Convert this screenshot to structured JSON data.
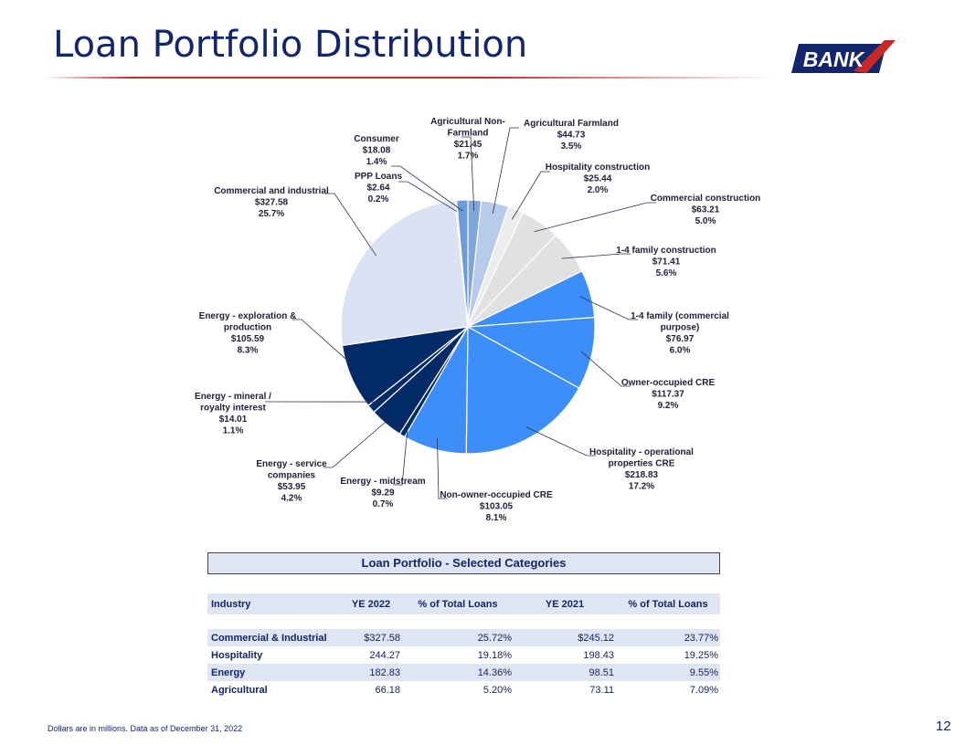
{
  "page": {
    "title": "Loan Portfolio Distribution",
    "logo_text": "BANK",
    "footnote": "Dollars are in millions.  Data as of December 31, 2022",
    "page_number": "12"
  },
  "chart_data": {
    "type": "pie",
    "title": "",
    "slices": [
      {
        "name": "Agricultural Non-Farmland",
        "value": 21.45,
        "value_label": "$21.45",
        "pct_label": "1.7%",
        "color": "#7fa6dd"
      },
      {
        "name": "Agricultural Farmland",
        "value": 44.73,
        "value_label": "$44.73",
        "pct_label": "3.5%",
        "color": "#b9cbea"
      },
      {
        "name": "Hospitality construction",
        "value": 25.44,
        "value_label": "$25.44",
        "pct_label": "2.0%",
        "color": "#ececec"
      },
      {
        "name": "Commercial construction",
        "value": 63.21,
        "value_label": "$63.21",
        "pct_label": "5.0%",
        "color": "#e1e1e1"
      },
      {
        "name": "1-4 family construction",
        "value": 71.41,
        "value_label": "$71.41",
        "pct_label": "5.6%",
        "color": "#e1e1e1"
      },
      {
        "name": "1-4 family (commercial purpose)",
        "value": 76.97,
        "value_label": "$76.97",
        "pct_label": "6.0%",
        "color": "#3d8ef8"
      },
      {
        "name": "Owner-occupied CRE",
        "value": 117.37,
        "value_label": "$117.37",
        "pct_label": "9.2%",
        "color": "#3d8ef8"
      },
      {
        "name": "Hospitality - operational properties CRE",
        "value": 218.83,
        "value_label": "$218.83",
        "pct_label": "17.2%",
        "color": "#3d8ef8"
      },
      {
        "name": "Non-owner-occupied CRE",
        "value": 103.05,
        "value_label": "$103.05",
        "pct_label": "8.1%",
        "color": "#3d8ef8"
      },
      {
        "name": "Energy - midstream",
        "value": 9.29,
        "value_label": "$9.29",
        "pct_label": "0.7%",
        "color": "#022a66"
      },
      {
        "name": "Energy - service companies",
        "value": 53.95,
        "value_label": "$53.95",
        "pct_label": "4.2%",
        "color": "#022a66"
      },
      {
        "name": "Energy - mineral / royalty interest",
        "value": 14.01,
        "value_label": "$14.01",
        "pct_label": "1.1%",
        "color": "#022a66"
      },
      {
        "name": "Energy - exploration & production",
        "value": 105.59,
        "value_label": "$105.59",
        "pct_label": "8.3%",
        "color": "#022a66"
      },
      {
        "name": "Commercial and industrial",
        "value": 327.58,
        "value_label": "$327.58",
        "pct_label": "25.7%",
        "color": "#dbe2f3"
      },
      {
        "name": "PPP Loans",
        "value": 2.64,
        "value_label": "$2.64",
        "pct_label": "0.2%",
        "color": "#c9d3ec"
      },
      {
        "name": "Consumer",
        "value": 18.08,
        "value_label": "$18.08",
        "pct_label": "1.4%",
        "color": "#6d9ad8"
      }
    ],
    "label_lines": [
      [
        "Agricultural Non-",
        "Farmland",
        "$21.45",
        "1.7%"
      ],
      [
        "Agricultural Farmland",
        "$44.73",
        "3.5%"
      ],
      [
        "Hospitality construction",
        "$25.44",
        "2.0%"
      ],
      [
        "Commercial construction",
        "$63.21",
        "5.0%"
      ],
      [
        "1-4 family construction",
        "$71.41",
        "5.6%"
      ],
      [
        "1-4 family (commercial",
        "purpose)",
        "$76.97",
        "6.0%"
      ],
      [
        "Owner-occupied CRE",
        "$117.37",
        "9.2%"
      ],
      [
        "Hospitality - operational",
        "properties CRE",
        "$218.83",
        "17.2%"
      ],
      [
        "Non-owner-occupied CRE",
        "$103.05",
        "8.1%"
      ],
      [
        "Energy - midstream",
        "$9.29",
        "0.7%"
      ],
      [
        "Energy - service",
        "companies",
        "$53.95",
        "4.2%"
      ],
      [
        "Energy - mineral /",
        "royalty interest",
        "$14.01",
        "1.1%"
      ],
      [
        "Energy - exploration &",
        "production",
        "$105.59",
        "8.3%"
      ],
      [
        "Commercial and industrial",
        "$327.58",
        "25.7%"
      ],
      [
        "PPP Loans",
        "$2.64",
        "0.2%"
      ],
      [
        "Consumer",
        "$18.08",
        "1.4%"
      ]
    ]
  },
  "table": {
    "title": "Loan Portfolio - Selected Categories",
    "headers": [
      "Industry",
      "YE 2022",
      "% of Total Loans",
      "YE 2021",
      "% of Total Loans"
    ],
    "rows": [
      [
        "Commercial & Industrial",
        "$327.58",
        "25.72%",
        "$245.12",
        "23.77%"
      ],
      [
        "Hospitality",
        "244.27",
        "19.18%",
        "198.43",
        "19.25%"
      ],
      [
        "Energy",
        "182.83",
        "14.36%",
        "98.51",
        "9.55%"
      ],
      [
        "Agricultural",
        "66.18",
        "5.20%",
        "73.11",
        "7.09%"
      ]
    ]
  }
}
